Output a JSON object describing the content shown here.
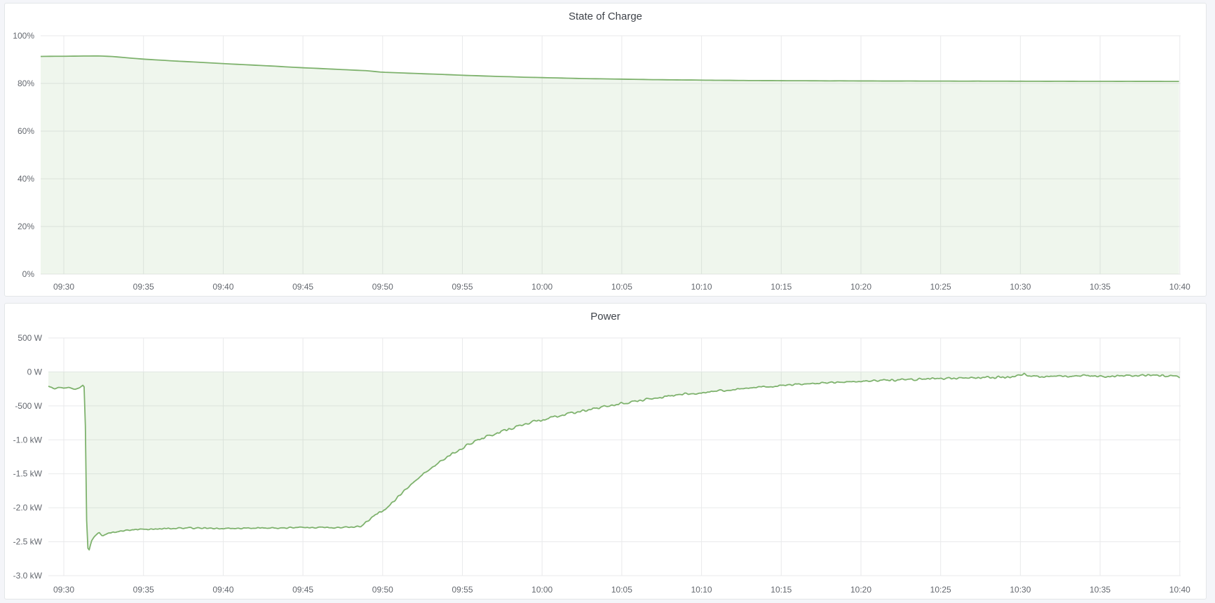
{
  "page": {
    "background": "#f4f5f9",
    "panel_background": "#ffffff",
    "panel_border": "#e3e6e8",
    "grid_color": "#e9eaeb",
    "axis_text_color": "#64686f",
    "title_color": "#3f434a"
  },
  "chart_data": [
    {
      "type": "area",
      "title": "State of Charge",
      "unit": "%",
      "line_color": "#7eb26d",
      "fill_color": "rgba(126,178,109,0.12)",
      "legend_position": "none",
      "grid": "on",
      "ylim": [
        0,
        100
      ],
      "y_ticks": [
        100,
        80,
        60,
        40,
        20,
        0
      ],
      "y_tick_labels": [
        "100%",
        "80%",
        "60%",
        "40%",
        "20%",
        "0%"
      ],
      "x_tick_labels": [
        "09:30",
        "09:35",
        "09:40",
        "09:45",
        "09:50",
        "09:55",
        "10:00",
        "10:05",
        "10:10",
        "10:15",
        "10:20",
        "10:25",
        "10:30",
        "10:35",
        "10:40"
      ],
      "x_ticks_minutes": [
        0,
        5,
        10,
        15,
        20,
        25,
        30,
        35,
        40,
        45,
        50,
        55,
        60,
        65,
        70
      ],
      "series": [
        {
          "name": "State of Charge",
          "x_unit": "minutes after 09:30",
          "keyframes": [
            [
              -1.45,
              91.35
            ],
            [
              0,
              91.4
            ],
            [
              1.3,
              91.5
            ],
            [
              2.2,
              91.55
            ],
            [
              3,
              91.3
            ],
            [
              4,
              90.75
            ],
            [
              5,
              90.2
            ],
            [
              6,
              89.8
            ],
            [
              7,
              89.4
            ],
            [
              8,
              89.05
            ],
            [
              9,
              88.7
            ],
            [
              10,
              88.35
            ],
            [
              11,
              88.0
            ],
            [
              12,
              87.65
            ],
            [
              13,
              87.3
            ],
            [
              14,
              86.95
            ],
            [
              15,
              86.6
            ],
            [
              16,
              86.3
            ],
            [
              17,
              85.95
            ],
            [
              18,
              85.65
            ],
            [
              19,
              85.35
            ],
            [
              20,
              84.7
            ],
            [
              21,
              84.45
            ],
            [
              22,
              84.2
            ],
            [
              23,
              83.95
            ],
            [
              24,
              83.7
            ],
            [
              25,
              83.45
            ],
            [
              26,
              83.2
            ],
            [
              27,
              83.0
            ],
            [
              28,
              82.8
            ],
            [
              29,
              82.6
            ],
            [
              30,
              82.45
            ],
            [
              31,
              82.3
            ],
            [
              32,
              82.15
            ],
            [
              33,
              82.0
            ],
            [
              34,
              81.9
            ],
            [
              35,
              81.8
            ],
            [
              36,
              81.7
            ],
            [
              37,
              81.6
            ],
            [
              38,
              81.5
            ],
            [
              39,
              81.45
            ],
            [
              40,
              81.4
            ],
            [
              41,
              81.33
            ],
            [
              42,
              81.28
            ],
            [
              43,
              81.23
            ],
            [
              44,
              81.2
            ],
            [
              45,
              81.17
            ],
            [
              46,
              81.14
            ],
            [
              47,
              81.11
            ],
            [
              48,
              81.09
            ],
            [
              49,
              81.07
            ],
            [
              50,
              81.05
            ],
            [
              52,
              81.02
            ],
            [
              54,
              81.0
            ],
            [
              56,
              80.98
            ],
            [
              58,
              80.96
            ],
            [
              60,
              80.93
            ],
            [
              62,
              80.9
            ],
            [
              64,
              80.88
            ],
            [
              66,
              80.87
            ],
            [
              68,
              80.86
            ],
            [
              70,
              80.85
            ]
          ],
          "noise_segments": [
            [
              -1.5,
              70,
              0.03
            ]
          ],
          "sample_step_minutes": 0.3
        }
      ]
    },
    {
      "type": "area",
      "title": "Power",
      "unit": "W",
      "line_color": "#7eb26d",
      "fill_color": "rgba(126,178,109,0.12)",
      "legend_position": "none",
      "grid": "on",
      "ylim": [
        -3000,
        500
      ],
      "y_ticks": [
        500,
        0,
        -500,
        -1000,
        -1500,
        -2000,
        -2500,
        -3000
      ],
      "y_tick_labels": [
        "500 W",
        "0 W",
        "-500 W",
        "-1.0 kW",
        "-1.5 kW",
        "-2.0 kW",
        "-2.5 kW",
        "-3.0 kW"
      ],
      "x_tick_labels": [
        "09:30",
        "09:35",
        "09:40",
        "09:45",
        "09:50",
        "09:55",
        "10:00",
        "10:05",
        "10:10",
        "10:15",
        "10:20",
        "10:25",
        "10:30",
        "10:35",
        "10:40"
      ],
      "x_ticks_minutes": [
        0,
        5,
        10,
        15,
        20,
        25,
        30,
        35,
        40,
        45,
        50,
        55,
        60,
        65,
        70
      ],
      "series": [
        {
          "name": "Power",
          "x_unit": "minutes after 09:30",
          "keyframes": [
            [
              -0.97,
              -210
            ],
            [
              -0.6,
              -250
            ],
            [
              -0.35,
              -225
            ],
            [
              0.0,
              -245
            ],
            [
              0.35,
              -230
            ],
            [
              0.7,
              -250
            ],
            [
              1.0,
              -225
            ],
            [
              1.2,
              -195
            ],
            [
              1.32,
              -235
            ],
            [
              1.45,
              -2500
            ],
            [
              1.55,
              -2650
            ],
            [
              1.75,
              -2480
            ],
            [
              1.95,
              -2420
            ],
            [
              2.2,
              -2360
            ],
            [
              2.45,
              -2420
            ],
            [
              2.7,
              -2390
            ],
            [
              3.2,
              -2360
            ],
            [
              4,
              -2335
            ],
            [
              5,
              -2320
            ],
            [
              6,
              -2310
            ],
            [
              7,
              -2305
            ],
            [
              8,
              -2300
            ],
            [
              10,
              -2300
            ],
            [
              12,
              -2298
            ],
            [
              14,
              -2295
            ],
            [
              16,
              -2292
            ],
            [
              17.5,
              -2288
            ],
            [
              18.6,
              -2280
            ],
            [
              19.3,
              -2150
            ],
            [
              20,
              -2050
            ],
            [
              20.5,
              -1950
            ],
            [
              21,
              -1830
            ],
            [
              21.5,
              -1720
            ],
            [
              22,
              -1610
            ],
            [
              22.5,
              -1510
            ],
            [
              23,
              -1420
            ],
            [
              23.5,
              -1330
            ],
            [
              24,
              -1255
            ],
            [
              24.5,
              -1180
            ],
            [
              25,
              -1115
            ],
            [
              25.5,
              -1055
            ],
            [
              26,
              -1000
            ],
            [
              26.5,
              -955
            ],
            [
              27,
              -915
            ],
            [
              27.5,
              -870
            ],
            [
              28,
              -835
            ],
            [
              28.5,
              -800
            ],
            [
              29,
              -765
            ],
            [
              29.5,
              -735
            ],
            [
              30,
              -705
            ],
            [
              31,
              -650
            ],
            [
              32,
              -600
            ],
            [
              33,
              -555
            ],
            [
              34,
              -510
            ],
            [
              35,
              -465
            ],
            [
              36,
              -425
            ],
            [
              37,
              -390
            ],
            [
              38,
              -355
            ],
            [
              39,
              -330
            ],
            [
              40,
              -305
            ],
            [
              41,
              -280
            ],
            [
              42,
              -258
            ],
            [
              43,
              -238
            ],
            [
              44,
              -218
            ],
            [
              45,
              -200
            ],
            [
              46,
              -185
            ],
            [
              47,
              -172
            ],
            [
              48,
              -160
            ],
            [
              49,
              -148
            ],
            [
              50,
              -137
            ],
            [
              51,
              -128
            ],
            [
              52,
              -119
            ],
            [
              53,
              -111
            ],
            [
              54,
              -104
            ],
            [
              55,
              -97
            ],
            [
              56,
              -91
            ],
            [
              57,
              -86
            ],
            [
              58,
              -81
            ],
            [
              59,
              -77
            ],
            [
              60,
              -60
            ],
            [
              60.25,
              -15
            ],
            [
              60.5,
              -75
            ],
            [
              61,
              -70
            ],
            [
              62,
              -60
            ],
            [
              63,
              -65
            ],
            [
              64,
              -57
            ],
            [
              65,
              -62
            ],
            [
              66,
              -55
            ],
            [
              67,
              -60
            ],
            [
              68,
              -52
            ],
            [
              69,
              -57
            ],
            [
              69.7,
              -45
            ],
            [
              70,
              -85
            ]
          ],
          "noise_segments": [
            [
              -1.0,
              1.32,
              12
            ],
            [
              1.32,
              3.0,
              25
            ],
            [
              3.0,
              18.6,
              16
            ],
            [
              18.6,
              30,
              30
            ],
            [
              30,
              40,
              26
            ],
            [
              40,
              50,
              18
            ],
            [
              50,
              70,
              24
            ]
          ],
          "sample_step_minutes": 0.08
        }
      ]
    }
  ]
}
